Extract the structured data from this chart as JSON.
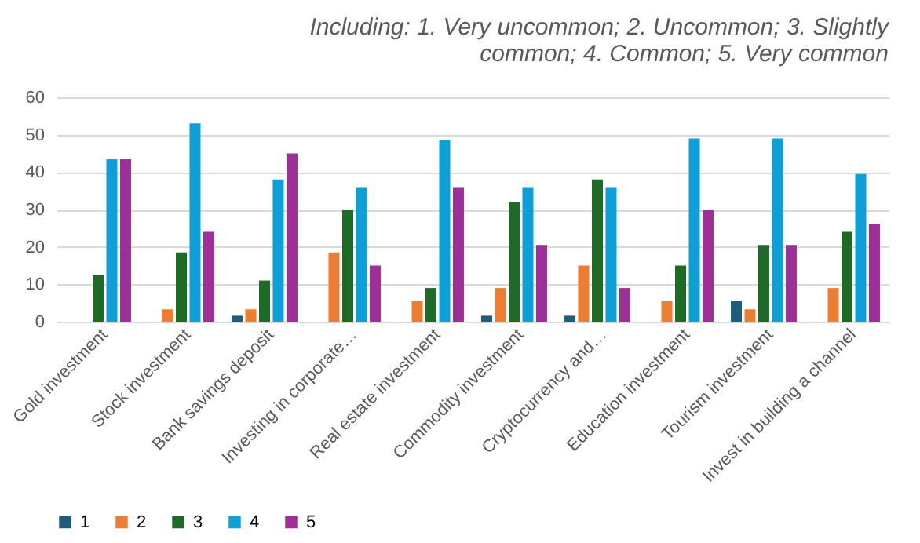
{
  "chart_data": {
    "type": "bar",
    "title": "Including: 1. Very uncommon; 2. Uncommon; 3. Slightly common; 4. Common; 5. Very common",
    "categories": [
      "Gold investment",
      "Stock investment",
      "Bank savings deposit",
      "Investing in corporate…",
      "Real estate investment",
      "Commodity investment",
      "Cryptocurrency and…",
      "Education investment",
      "Tourism investment",
      "Invest in building a channel"
    ],
    "series": [
      {
        "name": "1",
        "color": "#1f5c7e",
        "values": [
          0,
          0,
          1.6,
          0,
          0,
          1.6,
          1.6,
          0,
          5.5,
          0
        ]
      },
      {
        "name": "2",
        "color": "#ed7d31",
        "values": [
          0,
          3.3,
          3.3,
          18.5,
          5.5,
          9,
          15,
          5.5,
          3.3,
          9
        ]
      },
      {
        "name": "3",
        "color": "#1e6b28",
        "values": [
          12.5,
          18.5,
          11,
          30,
          9,
          32,
          38,
          15,
          20.5,
          24
        ]
      },
      {
        "name": "4",
        "color": "#0e9fd8",
        "values": [
          43.5,
          53,
          38,
          36,
          48.5,
          36,
          36,
          49,
          49,
          39.5
        ]
      },
      {
        "name": "5",
        "color": "#9e2f98",
        "values": [
          43.5,
          24,
          45,
          15,
          36,
          20.5,
          9,
          30,
          20.5,
          26
        ]
      }
    ],
    "ylim": [
      0,
      60
    ],
    "yticks": [
      0,
      10,
      20,
      30,
      40,
      50,
      60
    ],
    "grid": "y",
    "legend": "bottom"
  }
}
